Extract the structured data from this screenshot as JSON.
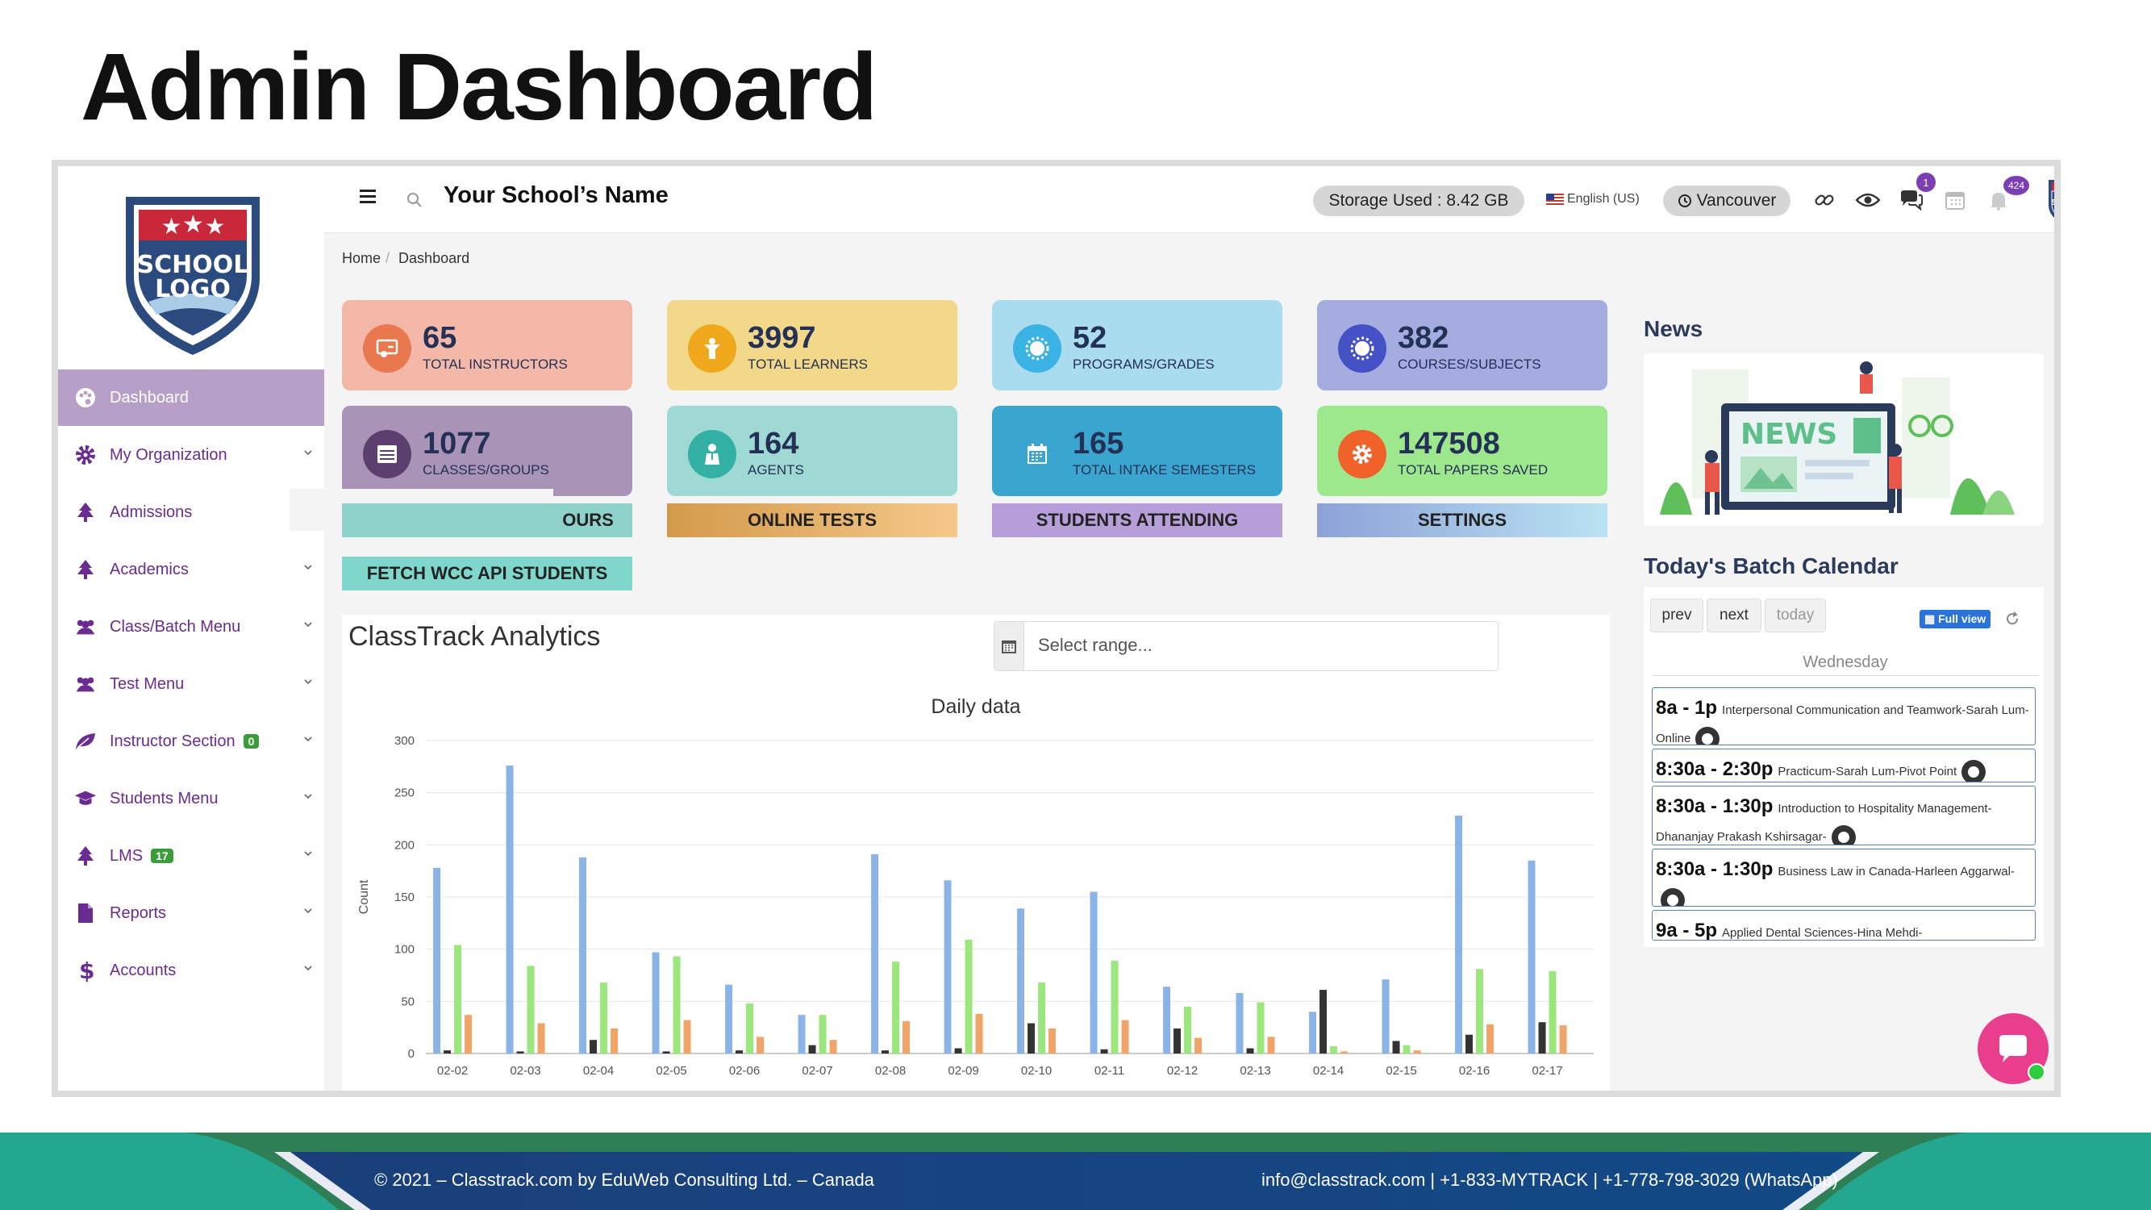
{
  "slide": {
    "title": "Admin Dashboard"
  },
  "topbar": {
    "school_name": "Your School’s Name",
    "storage": "Storage Used : 8.42 GB",
    "language": "English (US)",
    "location": "Vancouver",
    "messages_badge": "1",
    "notifications_badge": "424"
  },
  "breadcrumb": {
    "home": "Home",
    "current": "Dashboard"
  },
  "sidebar": {
    "items": [
      {
        "label": "Dashboard",
        "icon": "palette-icon"
      },
      {
        "label": "My Organization",
        "icon": "gear-icon"
      },
      {
        "label": "Admissions",
        "icon": "tree-icon"
      },
      {
        "label": "Academics",
        "icon": "tree-icon"
      },
      {
        "label": "Class/Batch Menu",
        "icon": "users-icon"
      },
      {
        "label": "Test Menu",
        "icon": "users-icon"
      },
      {
        "label": "Instructor Section",
        "icon": "leaf-icon",
        "badge": "0"
      },
      {
        "label": "Students Menu",
        "icon": "graduation-cap-icon"
      },
      {
        "label": "LMS",
        "icon": "tree-icon",
        "badge": "17"
      },
      {
        "label": "Reports",
        "icon": "file-icon"
      },
      {
        "label": "Accounts",
        "icon": "dollar-icon"
      }
    ]
  },
  "stats": [
    {
      "value": "65",
      "label": "TOTAL INSTRUCTORS",
      "bg": "#f4b8a8",
      "circle": "#e9784f"
    },
    {
      "value": "3997",
      "label": "TOTAL LEARNERS",
      "bg": "#f2d98a",
      "circle": "#f0a81c"
    },
    {
      "value": "52",
      "label": "PROGRAMS/GRADES",
      "bg": "#a9dcef",
      "circle": "#3bb2e4"
    },
    {
      "value": "382",
      "label": "COURSES/SUBJECTS",
      "bg": "#a5acdf",
      "circle": "#4452c6"
    },
    {
      "value": "1077",
      "label": "CLASSES/GROUPS",
      "bg": "#a993b6",
      "circle": "#5b3f6f"
    },
    {
      "value": "164",
      "label": "AGENTS",
      "bg": "#9fd9d3",
      "circle": "#33b0a4"
    },
    {
      "value": "165",
      "label": "TOTAL INTAKE SEMESTERS",
      "bg": "#3aa6cf",
      "circle": "#3aa6cf"
    },
    {
      "value": "147508",
      "label": "TOTAL PAPERS SAVED",
      "bg": "#9de88d",
      "circle": "#f0622a"
    }
  ],
  "quick_buttons": {
    "hours": "OURS",
    "online_tests": "ONLINE TESTS",
    "students_attending": "STUDENTS ATTENDING",
    "settings": "SETTINGS",
    "fetch": "FETCH WCC API STUDENTS"
  },
  "analytics": {
    "title": "ClassTrack Analytics",
    "range_placeholder": "Select range..."
  },
  "chart_data": {
    "type": "bar",
    "title": "Daily data",
    "xlabel": "",
    "ylabel": "Count",
    "ylim": [
      0,
      300
    ],
    "yticks": [
      0,
      50,
      100,
      150,
      200,
      250,
      300
    ],
    "categories": [
      "02-02",
      "02-03",
      "02-04",
      "02-05",
      "02-06",
      "02-07",
      "02-08",
      "02-09",
      "02-10",
      "02-11",
      "02-12",
      "02-13",
      "02-14",
      "02-15",
      "02-16",
      "02-17"
    ],
    "series": [
      {
        "color": "#8ab4e8",
        "values": [
          178,
          276,
          188,
          97,
          66,
          37,
          191,
          166,
          139,
          155,
          64,
          58,
          40,
          71,
          228,
          185
        ]
      },
      {
        "color": "#333333",
        "values": [
          3,
          2,
          13,
          2,
          3,
          8,
          3,
          5,
          29,
          4,
          24,
          5,
          61,
          12,
          18,
          30
        ]
      },
      {
        "color": "#9be77c",
        "values": [
          104,
          84,
          68,
          93,
          48,
          37,
          88,
          109,
          68,
          89,
          45,
          49,
          7,
          8,
          81,
          79
        ]
      },
      {
        "color": "#f0a468",
        "values": [
          37,
          29,
          24,
          32,
          16,
          13,
          31,
          38,
          24,
          32,
          15,
          16,
          2,
          3,
          28,
          27
        ]
      }
    ]
  },
  "news": {
    "title": "News",
    "image_text": "NEWS"
  },
  "calendar": {
    "title": "Today's Batch Calendar",
    "prev": "prev",
    "next": "next",
    "today": "today",
    "full_view": "Full view",
    "weekday": "Wednesday",
    "events": [
      {
        "time": "8a - 1p",
        "title": "Interpersonal Communication and Teamwork-Sarah Lum-Online"
      },
      {
        "time": "8:30a - 2:30p",
        "title": "Practicum-Sarah Lum-Pivot Point"
      },
      {
        "time": "8:30a - 1:30p",
        "title": "Introduction to Hospitality Management-Dhananjay Prakash Kshirsagar-"
      },
      {
        "time": "8:30a - 1:30p",
        "title": "Business Law in Canada-Harleen Aggarwal-"
      },
      {
        "time": "9a - 5p",
        "title": "Applied Dental Sciences-Hina Mehdi-"
      }
    ]
  },
  "footer": {
    "left": "© 2021 – Classtrack.com by EduWeb Consulting Ltd. – Canada",
    "right": "info@classtrack.com | +1-833-MYTRACK | +1-778-798-3029 (WhatsApp)"
  }
}
